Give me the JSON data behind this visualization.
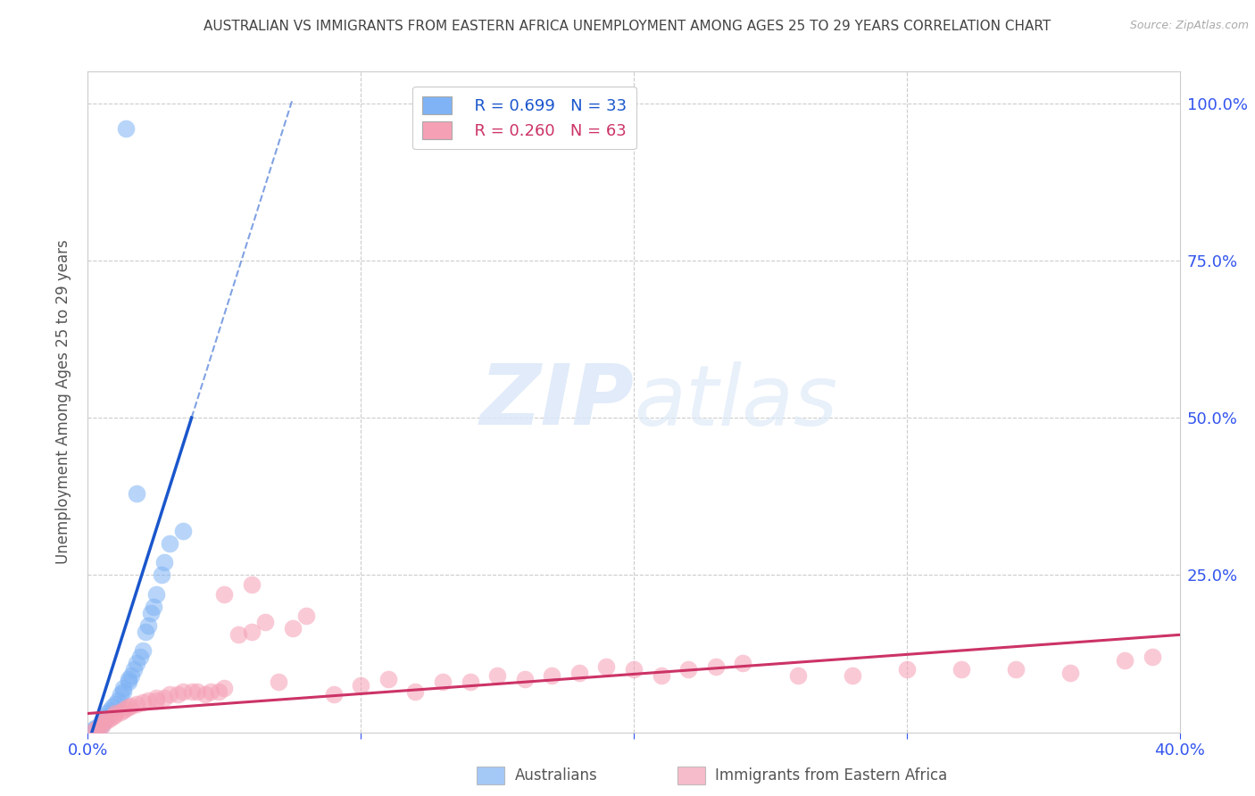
{
  "title": "AUSTRALIAN VS IMMIGRANTS FROM EASTERN AFRICA UNEMPLOYMENT AMONG AGES 25 TO 29 YEARS CORRELATION CHART",
  "source": "Source: ZipAtlas.com",
  "ylabel": "Unemployment Among Ages 25 to 29 years",
  "xlim": [
    0.0,
    0.4
  ],
  "ylim": [
    0.0,
    1.05
  ],
  "grid_color": "#cccccc",
  "background_color": "#ffffff",
  "watermark_zip": "ZIP",
  "watermark_atlas": "atlas",
  "legend_r1": "R = 0.699",
  "legend_n1": "N = 33",
  "legend_r2": "R = 0.260",
  "legend_n2": "N = 63",
  "blue_color": "#7fb3f5",
  "pink_color": "#f5a0b5",
  "blue_line_color": "#1a56cc",
  "pink_line_color": "#cc3366",
  "title_color": "#444444",
  "label_color": "#3355ee",
  "aus_label": "Australians",
  "imm_label": "Immigrants from Eastern Africa",
  "aus_x": [
    0.002,
    0.003,
    0.004,
    0.005,
    0.005,
    0.006,
    0.006,
    0.007,
    0.008,
    0.009,
    0.01,
    0.011,
    0.012,
    0.013,
    0.013,
    0.015,
    0.015,
    0.016,
    0.017,
    0.018,
    0.019,
    0.02,
    0.021,
    0.022,
    0.023,
    0.024,
    0.025,
    0.027,
    0.028,
    0.03,
    0.035,
    0.014,
    0.018
  ],
  "aus_y": [
    0.005,
    0.008,
    0.01,
    0.012,
    0.018,
    0.02,
    0.025,
    0.03,
    0.035,
    0.04,
    0.045,
    0.05,
    0.06,
    0.065,
    0.07,
    0.08,
    0.085,
    0.09,
    0.1,
    0.11,
    0.12,
    0.13,
    0.16,
    0.17,
    0.19,
    0.2,
    0.22,
    0.25,
    0.27,
    0.3,
    0.32,
    0.96,
    0.38
  ],
  "imm_x": [
    0.002,
    0.003,
    0.004,
    0.005,
    0.005,
    0.006,
    0.007,
    0.008,
    0.009,
    0.01,
    0.01,
    0.012,
    0.013,
    0.014,
    0.015,
    0.016,
    0.018,
    0.02,
    0.022,
    0.025,
    0.025,
    0.028,
    0.03,
    0.033,
    0.035,
    0.038,
    0.04,
    0.043,
    0.045,
    0.048,
    0.05,
    0.055,
    0.06,
    0.065,
    0.07,
    0.075,
    0.08,
    0.09,
    0.1,
    0.11,
    0.12,
    0.13,
    0.14,
    0.15,
    0.16,
    0.17,
    0.18,
    0.19,
    0.2,
    0.21,
    0.22,
    0.23,
    0.24,
    0.26,
    0.28,
    0.3,
    0.32,
    0.34,
    0.36,
    0.38,
    0.39,
    0.05,
    0.06
  ],
  "imm_y": [
    0.003,
    0.005,
    0.008,
    0.01,
    0.015,
    0.018,
    0.02,
    0.022,
    0.025,
    0.028,
    0.03,
    0.032,
    0.035,
    0.038,
    0.04,
    0.042,
    0.045,
    0.048,
    0.05,
    0.05,
    0.055,
    0.055,
    0.06,
    0.06,
    0.065,
    0.065,
    0.065,
    0.06,
    0.065,
    0.065,
    0.07,
    0.155,
    0.16,
    0.175,
    0.08,
    0.165,
    0.185,
    0.06,
    0.075,
    0.085,
    0.065,
    0.08,
    0.08,
    0.09,
    0.085,
    0.09,
    0.095,
    0.105,
    0.1,
    0.09,
    0.1,
    0.105,
    0.11,
    0.09,
    0.09,
    0.1,
    0.1,
    0.1,
    0.095,
    0.115,
    0.12,
    0.22,
    0.235
  ],
  "blue_trendline_x0": 0.0,
  "blue_trendline_y0": -0.02,
  "blue_trendline_x1": 0.038,
  "blue_trendline_y1": 0.5,
  "blue_trendline_solid_end": 0.038,
  "blue_trendline_dash_end": 0.075,
  "pink_trendline_x0": 0.0,
  "pink_trendline_y0": 0.03,
  "pink_trendline_x1": 0.4,
  "pink_trendline_y1": 0.155
}
